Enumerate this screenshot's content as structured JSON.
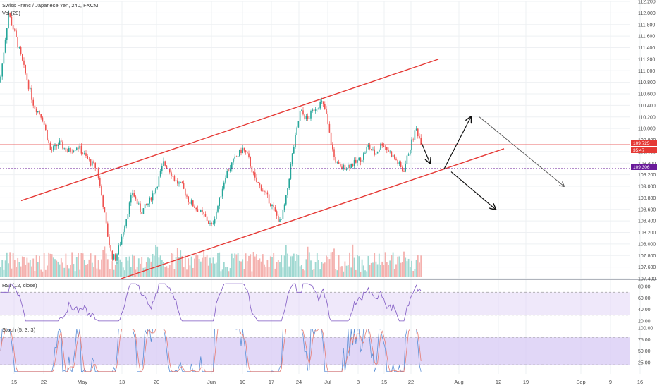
{
  "header": {
    "symbol_title": "Swiss Franc / Japanese Yen, 240, FXCM",
    "volume_label": "Vol (20)",
    "rsi_label": "RSI (12, close)",
    "stoch_label": "Stoch (5, 3, 3)"
  },
  "price_labels": {
    "last_price": "109.725",
    "countdown": "35:47",
    "level_price": "109.306"
  },
  "colors": {
    "up": "#26a69a",
    "down": "#ef5350",
    "channel": "#e53935",
    "rsi": "#7e57c2",
    "rsi_band": "#e1d5f5",
    "stoch_band": "#d7c9f4",
    "stoch_k": "#5b8fd6",
    "stoch_d": "#e67c73",
    "level": "#6a1b9a",
    "last_price": "#e53935"
  },
  "chart_data": [
    {
      "type": "candlestick",
      "title": "Swiss Franc / Japanese Yen, 240, FXCM",
      "x_ticks": [
        "15",
        "22",
        "May",
        "13",
        "20",
        "Jun",
        "10",
        "17",
        "24",
        "Jul",
        "8",
        "15",
        "22",
        "Aug",
        "12",
        "19",
        "Sep",
        "9",
        "16"
      ],
      "y_ticks": [
        "112.200",
        "112.000",
        "111.800",
        "111.600",
        "111.400",
        "111.200",
        "111.000",
        "110.800",
        "110.600",
        "110.400",
        "110.200",
        "110.000",
        "109.800",
        "109.600",
        "109.400",
        "109.200",
        "109.000",
        "108.800",
        "108.600",
        "108.400",
        "108.200",
        "108.000",
        "107.800",
        "107.600",
        "107.400"
      ],
      "ylim": [
        107.4,
        112.2
      ],
      "last_price": 109.725,
      "horizontal_level": 109.306,
      "price_path": [
        [
          0,
          110.8
        ],
        [
          6,
          111.4
        ],
        [
          12,
          112.0
        ],
        [
          22,
          111.6
        ],
        [
          35,
          111.0
        ],
        [
          48,
          110.4
        ],
        [
          60,
          110.2
        ],
        [
          72,
          109.6
        ],
        [
          84,
          109.75
        ],
        [
          96,
          109.6
        ],
        [
          110,
          109.7
        ],
        [
          125,
          109.45
        ],
        [
          138,
          109.3
        ],
        [
          141,
          109.05
        ],
        [
          146,
          108.7
        ],
        [
          152,
          108.2
        ],
        [
          158,
          107.8
        ],
        [
          164,
          107.75
        ],
        [
          170,
          108.0
        ],
        [
          178,
          108.4
        ],
        [
          188,
          108.9
        ],
        [
          200,
          108.55
        ],
        [
          210,
          108.7
        ],
        [
          222,
          109.0
        ],
        [
          232,
          109.4
        ],
        [
          240,
          109.3
        ],
        [
          248,
          109.1
        ],
        [
          258,
          109.0
        ],
        [
          268,
          108.75
        ],
        [
          280,
          108.6
        ],
        [
          292,
          108.45
        ],
        [
          300,
          108.3
        ],
        [
          310,
          108.7
        ],
        [
          320,
          109.2
        ],
        [
          332,
          109.45
        ],
        [
          344,
          109.65
        ],
        [
          352,
          109.5
        ],
        [
          362,
          109.1
        ],
        [
          372,
          108.95
        ],
        [
          382,
          108.75
        ],
        [
          392,
          108.5
        ],
        [
          398,
          108.35
        ],
        [
          406,
          108.8
        ],
        [
          414,
          109.5
        ],
        [
          420,
          109.9
        ],
        [
          426,
          110.3
        ],
        [
          436,
          110.15
        ],
        [
          446,
          110.35
        ],
        [
          456,
          110.45
        ],
        [
          462,
          110.3
        ],
        [
          468,
          109.85
        ],
        [
          474,
          109.5
        ],
        [
          482,
          109.3
        ],
        [
          492,
          109.35
        ],
        [
          504,
          109.4
        ],
        [
          514,
          109.5
        ],
        [
          522,
          109.7
        ],
        [
          532,
          109.55
        ],
        [
          542,
          109.75
        ],
        [
          552,
          109.6
        ],
        [
          562,
          109.45
        ],
        [
          572,
          109.25
        ],
        [
          580,
          109.6
        ],
        [
          590,
          110.0
        ],
        [
          598,
          109.75
        ]
      ],
      "projection_arrows": [
        {
          "from": [
            598,
            109.75
          ],
          "to": [
            610,
            109.4
          ]
        },
        {
          "from": [
            630,
            109.3
          ],
          "to": [
            668,
            110.2
          ]
        },
        {
          "from": [
            640,
            109.25
          ],
          "to": [
            703,
            108.6
          ]
        },
        {
          "from": [
            680,
            110.2
          ],
          "to": [
            800,
            109.0
          ]
        }
      ],
      "trend_channel": {
        "upper": {
          "from": [
            30,
            108.75
          ],
          "to": [
            622,
            111.2
          ]
        },
        "lower": {
          "from": [
            172,
            107.4
          ],
          "to": [
            715,
            109.65
          ]
        }
      }
    },
    {
      "type": "bar",
      "title": "Vol (20)",
      "note": "volume histogram under price pane"
    },
    {
      "type": "line",
      "title": "RSI (12, close)",
      "y_ticks": [
        "80.00",
        "60.00",
        "40.00",
        "20.00"
      ],
      "ylim": [
        15,
        90
      ],
      "bands": [
        70,
        30
      ]
    },
    {
      "type": "line",
      "title": "Stoch (5, 3, 3)",
      "y_ticks": [
        "100.00",
        "75.00",
        "50.00",
        "25.00"
      ],
      "ylim": [
        0,
        105
      ],
      "bands": [
        80,
        20
      ]
    }
  ]
}
